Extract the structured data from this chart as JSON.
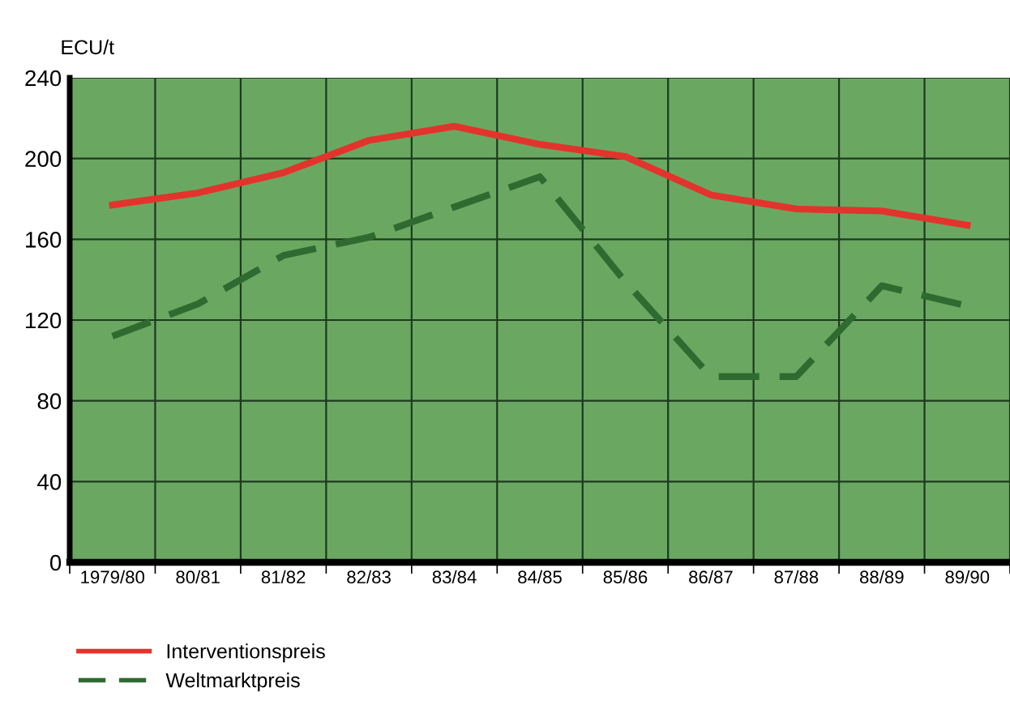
{
  "chart_data": {
    "type": "line",
    "ylabel": "ECU/t",
    "categories": [
      "1979/80",
      "80/81",
      "81/82",
      "82/83",
      "83/84",
      "84/85",
      "85/86",
      "86/87",
      "87/88",
      "88/89",
      "89/90"
    ],
    "series": [
      {
        "name": "Interventionspreis",
        "color": "#e2342c",
        "line_style": "solid",
        "values": [
          177,
          183,
          193,
          209,
          216,
          207,
          201,
          182,
          175,
          174,
          167
        ]
      },
      {
        "name": "Weltmarktpreis",
        "color": "#2f6a30",
        "line_style": "dashed",
        "values": [
          112,
          128,
          152,
          161,
          176,
          191,
          139,
          92,
          92,
          137,
          127
        ]
      }
    ],
    "ylim": [
      0,
      240
    ],
    "yticks": [
      0,
      40,
      80,
      120,
      160,
      200,
      240
    ],
    "grid": true,
    "legend": "bottom left",
    "marker": "none"
  }
}
